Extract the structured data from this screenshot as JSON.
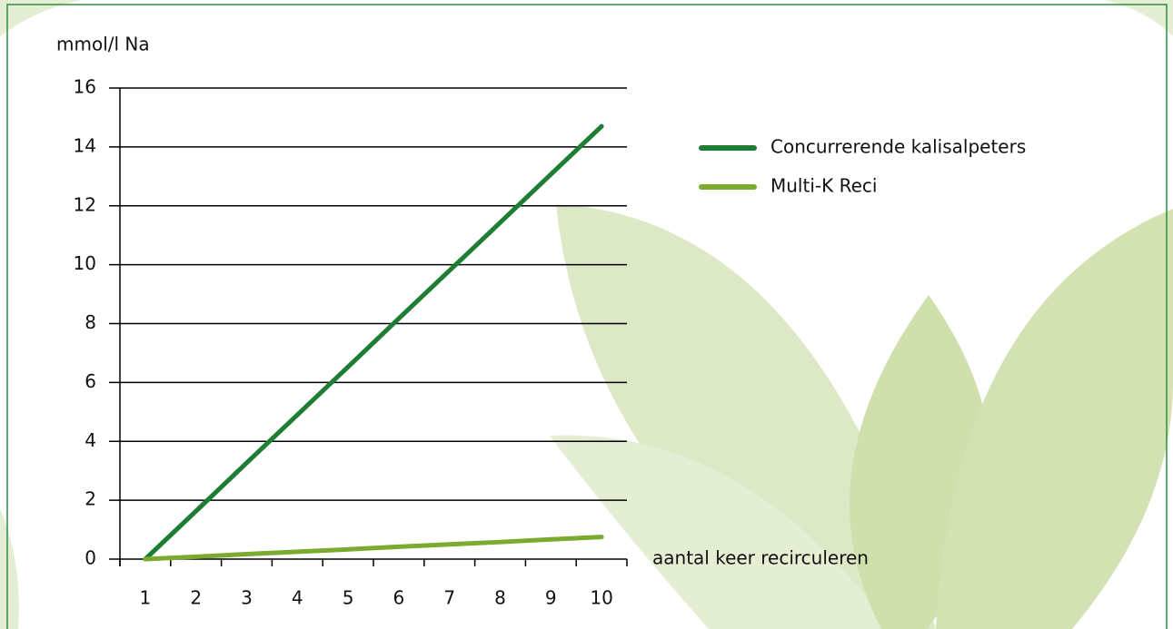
{
  "chart_data": {
    "type": "line",
    "y_label": "mmol/l Na",
    "x_label": "aantal keer recirculeren",
    "categories": [
      "1",
      "2",
      "3",
      "4",
      "5",
      "6",
      "7",
      "8",
      "9",
      "10"
    ],
    "series": [
      {
        "name": "Concurrerende kalisalpeters",
        "color": "#1e7d34",
        "values": [
          0,
          1.63,
          3.27,
          4.9,
          6.53,
          8.17,
          9.8,
          11.43,
          13.07,
          14.7
        ]
      },
      {
        "name": "Multi-K Reci",
        "color": "#7aab2e",
        "values": [
          0,
          0.08,
          0.17,
          0.25,
          0.33,
          0.42,
          0.5,
          0.58,
          0.67,
          0.75
        ]
      }
    ],
    "ylim": [
      0,
      16
    ],
    "yticks": [
      0,
      2,
      4,
      6,
      8,
      10,
      12,
      14,
      16
    ],
    "grid": true
  }
}
